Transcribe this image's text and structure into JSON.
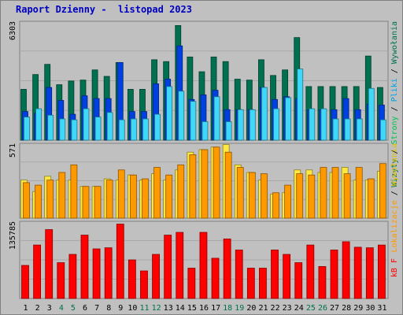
{
  "title": "Raport Dzienny -  listopad 2023",
  "chart_data": [
    {
      "type": "bar",
      "panel": "top",
      "ymax_label": "6303",
      "ymax": 6303,
      "categories": [
        "1",
        "2",
        "3",
        "4",
        "5",
        "6",
        "7",
        "8",
        "9",
        "10",
        "11",
        "12",
        "13",
        "14",
        "15",
        "16",
        "17",
        "18",
        "19",
        "20",
        "21",
        "22",
        "23",
        "24",
        "25",
        "26",
        "27",
        "28",
        "29",
        "30",
        "31"
      ],
      "weekend_days": [
        "4",
        "5",
        "11",
        "12",
        "18",
        "19",
        "25",
        "26"
      ],
      "series": [
        {
          "name": "Wizyty",
          "values": [
            2750,
            3550,
            4100,
            3000,
            3200,
            3250,
            3800,
            3450,
            4200,
            2750,
            2750,
            4350,
            4250,
            6200,
            4500,
            3700,
            4500,
            4250,
            3300,
            3250,
            4350,
            3500,
            3800,
            5550,
            2900,
            2900,
            2900,
            2900,
            2900,
            4550,
            2850
          ],
          "color": "#007050"
        },
        {
          "name": "Strony",
          "values": [
            1550,
            1450,
            2850,
            2150,
            1400,
            2400,
            2250,
            2250,
            4200,
            1550,
            1550,
            3050,
            3300,
            5100,
            2200,
            2450,
            2700,
            1650,
            1650,
            1650,
            2850,
            2200,
            2350,
            2250,
            1650,
            1650,
            1650,
            2250,
            1650,
            1950,
            1900
          ],
          "color": "#0040e0"
        },
        {
          "name": "Pliki",
          "values": [
            1250,
            1700,
            1350,
            1150,
            1100,
            1700,
            1250,
            1500,
            1100,
            1150,
            1150,
            1400,
            2900,
            2650,
            2100,
            1000,
            2350,
            1000,
            1650,
            1650,
            2850,
            1700,
            2300,
            3850,
            1700,
            1700,
            1150,
            1150,
            1150,
            2800,
            1100
          ],
          "color": "#40d8f8"
        }
      ],
      "legend": [
        "Wizyty",
        "Strony",
        "Pliki",
        "Wywołania"
      ]
    },
    {
      "type": "bar",
      "panel": "middle",
      "ymax_label": "571",
      "ymax": 571,
      "series": [
        {
          "name": "Lokalizacje",
          "values": [
            280,
            260,
            300,
            360,
            420,
            250,
            250,
            300,
            380,
            340,
            310,
            400,
            340,
            420,
            500,
            540,
            560,
            520,
            400,
            360,
            350,
            200,
            260,
            350,
            340,
            400,
            400,
            350,
            400,
            310,
            430
          ],
          "color": "#ff9900"
        },
        {
          "name": "Wywołania",
          "values": [
            300,
            210,
            330,
            300,
            300,
            250,
            250,
            310,
            300,
            340,
            300,
            350,
            300,
            380,
            520,
            540,
            560,
            580,
            420,
            360,
            300,
            190,
            200,
            380,
            380,
            360,
            360,
            400,
            300,
            300,
            370
          ],
          "color": "#ffe840"
        }
      ]
    },
    {
      "type": "bar",
      "panel": "bottom",
      "ymax_label": "135785",
      "ymax": 135785,
      "series": [
        {
          "name": "kB F",
          "values": [
            60000,
            97000,
            125000,
            65000,
            80000,
            115000,
            90000,
            92000,
            135000,
            70000,
            50000,
            80000,
            115000,
            120000,
            55000,
            120000,
            73000,
            108000,
            88000,
            55000,
            55000,
            88000,
            80000,
            65000,
            97000,
            58000,
            88000,
            103000,
            93000,
            92000,
            97000
          ],
          "color": "#ff0000"
        }
      ],
      "legend": [
        "kB F"
      ]
    }
  ]
}
